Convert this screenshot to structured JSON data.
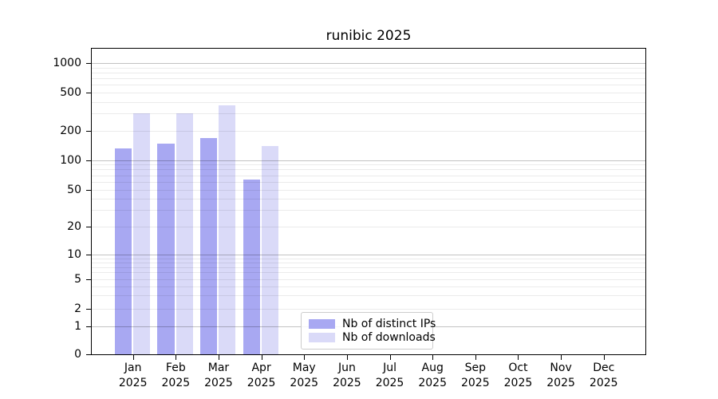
{
  "chart_data": {
    "type": "bar",
    "title": "runibic 2025",
    "categories": [
      {
        "month": "Jan",
        "year": "2025"
      },
      {
        "month": "Feb",
        "year": "2025"
      },
      {
        "month": "Mar",
        "year": "2025"
      },
      {
        "month": "Apr",
        "year": "2025"
      },
      {
        "month": "May",
        "year": "2025"
      },
      {
        "month": "Jun",
        "year": "2025"
      },
      {
        "month": "Jul",
        "year": "2025"
      },
      {
        "month": "Aug",
        "year": "2025"
      },
      {
        "month": "Sep",
        "year": "2025"
      },
      {
        "month": "Oct",
        "year": "2025"
      },
      {
        "month": "Nov",
        "year": "2025"
      },
      {
        "month": "Dec",
        "year": "2025"
      }
    ],
    "series": [
      {
        "name": "Nb of distinct IPs",
        "color": "#a8a8f2",
        "values": [
          130,
          147,
          166,
          63,
          null,
          null,
          null,
          null,
          null,
          null,
          null,
          null
        ]
      },
      {
        "name": "Nb of downloads",
        "color": "#dadaf8",
        "values": [
          300,
          300,
          365,
          140,
          null,
          null,
          null,
          null,
          null,
          null,
          null,
          null
        ]
      }
    ],
    "y_axis": {
      "scale": "symlog",
      "ticks": [
        0,
        1,
        2,
        5,
        10,
        20,
        50,
        100,
        200,
        500,
        1000
      ],
      "range": [
        0,
        1500
      ]
    },
    "x_axis": {
      "label": ""
    },
    "grid": "horizontal",
    "legend_position": "bottom-center"
  }
}
